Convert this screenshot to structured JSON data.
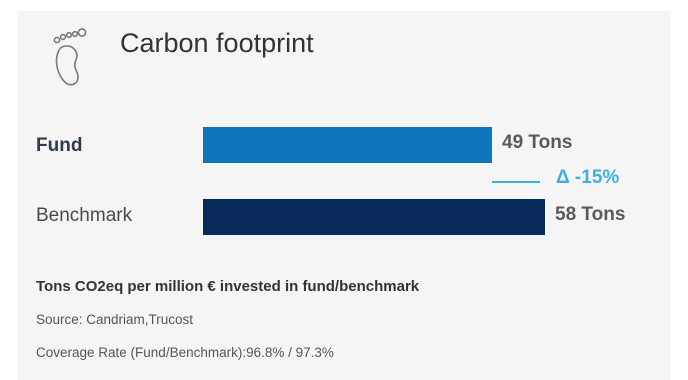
{
  "header": {
    "title": "Carbon footprint",
    "icon": "footprint-icon"
  },
  "chart_data": {
    "type": "bar",
    "orientation": "horizontal",
    "categories": [
      "Fund",
      "Benchmark"
    ],
    "values": [
      49,
      58
    ],
    "value_labels": [
      "49 Tons",
      "58 Tons"
    ],
    "colors": [
      "#0e76bc",
      "#0b2a5c"
    ],
    "delta_label": "Δ -15%",
    "xlim": [
      0,
      58
    ]
  },
  "notes": {
    "unit": "Tons CO2eq per million € invested in fund/benchmark",
    "source": "Source: Candriam,Trucost",
    "coverage": "Coverage Rate (Fund/Benchmark):96.8% / 97.3%"
  }
}
